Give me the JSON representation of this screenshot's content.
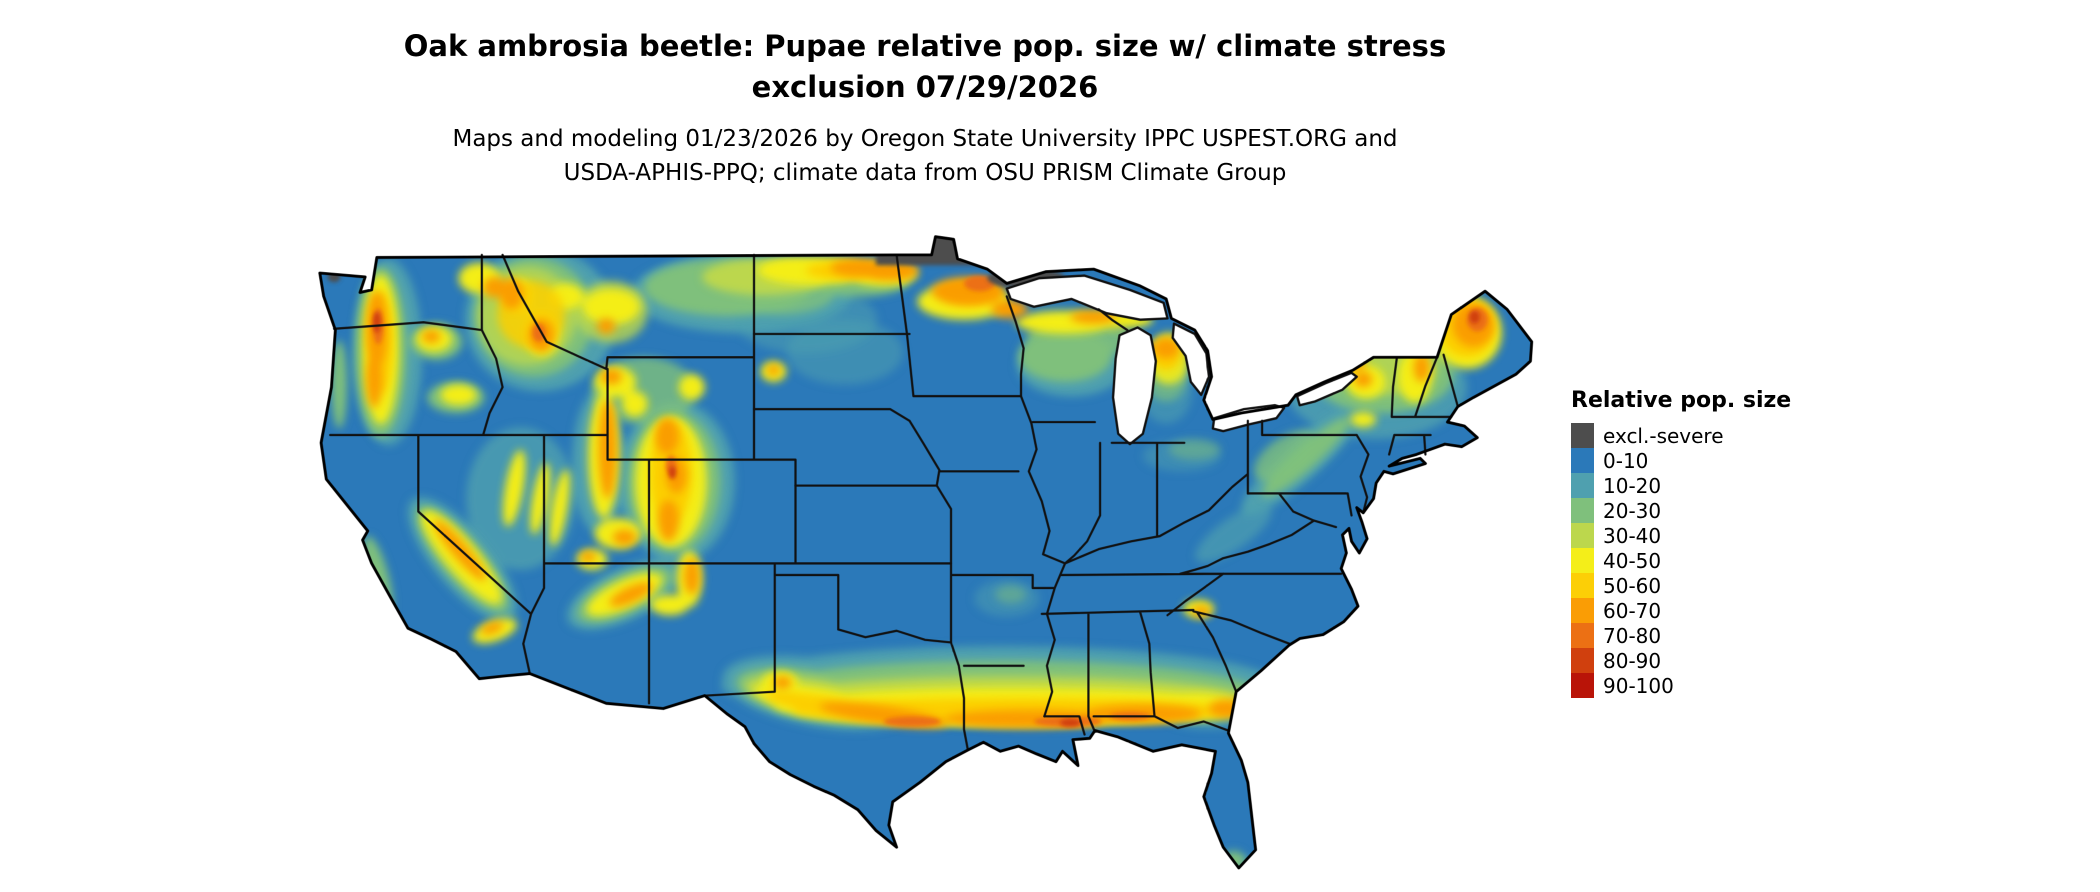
{
  "title": {
    "line1": "Oak ambrosia beetle: Pupae relative pop. size w/ climate stress",
    "line2": "exclusion 07/29/2026"
  },
  "subtitle": {
    "line1": "Maps and modeling 01/23/2026 by Oregon State University IPPC USPEST.ORG and",
    "line2": "USDA-APHIS-PPQ; climate data from OSU PRISM Climate Group"
  },
  "legend": {
    "title": "Relative pop. size",
    "items": [
      {
        "label": "excl.-severe",
        "color": "#4d4d4d"
      },
      {
        "label": "0-10",
        "color": "#2b79b9"
      },
      {
        "label": "10-20",
        "color": "#4fa0af"
      },
      {
        "label": "20-30",
        "color": "#7fc07c"
      },
      {
        "label": "30-40",
        "color": "#bcd74d"
      },
      {
        "label": "40-50",
        "color": "#f4ee19"
      },
      {
        "label": "50-60",
        "color": "#fccf06"
      },
      {
        "label": "60-70",
        "color": "#fa9d05"
      },
      {
        "label": "70-80",
        "color": "#ec7014"
      },
      {
        "label": "80-90",
        "color": "#d0400e"
      },
      {
        "label": "90-100",
        "color": "#b91408"
      }
    ]
  }
}
